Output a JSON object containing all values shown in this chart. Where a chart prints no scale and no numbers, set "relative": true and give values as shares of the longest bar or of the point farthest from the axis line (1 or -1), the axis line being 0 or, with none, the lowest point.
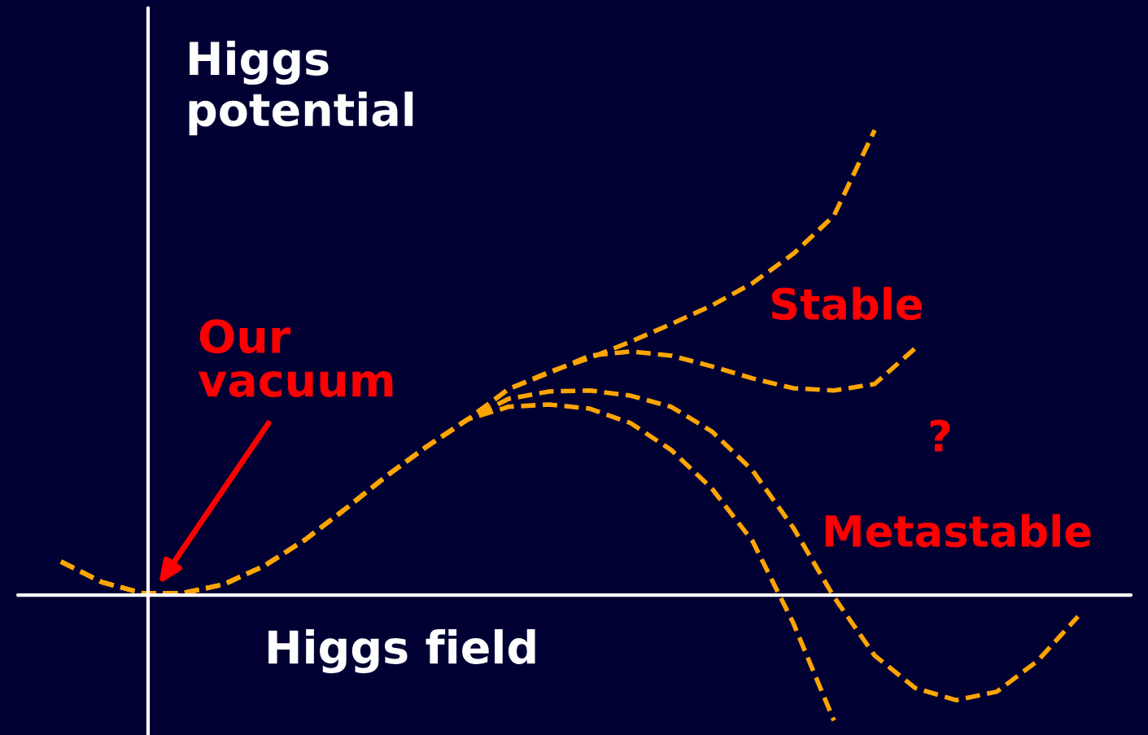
{
  "chart_data": {
    "type": "line",
    "relative": true,
    "xlabel": "Higgs field",
    "ylabel": "Higgs potential",
    "line_style": "dashed",
    "marker": "none",
    "legend": false,
    "categories": [
      null,
      null,
      null,
      null,
      null,
      null,
      null,
      null,
      null,
      null,
      null,
      null,
      null,
      null,
      null,
      null,
      null,
      null,
      null,
      null,
      null,
      null,
      null,
      null,
      null,
      null
    ],
    "series": [
      {
        "color": "#ffa500",
        "values": [
          0.072,
          0.028,
          0.004,
          0.004,
          0.023,
          0.063,
          0.119,
          0.186,
          0.256,
          0.32,
          0.378,
          0.443,
          0.48,
          0.51,
          0.545,
          0.583,
          0.623,
          0.671,
          0.734,
          0.816,
          1.0,
          null,
          null,
          null,
          null,
          null
        ]
      },
      {
        "color": "#ffa500",
        "values": [
          0.072,
          0.028,
          0.004,
          0.004,
          0.023,
          0.063,
          0.119,
          0.186,
          0.256,
          0.32,
          0.378,
          0.443,
          0.478,
          0.515,
          0.524,
          0.515,
          0.492,
          0.466,
          0.445,
          0.44,
          0.454,
          0.531,
          null,
          null,
          null,
          null
        ]
      },
      {
        "color": "#ffa500",
        "values": [
          0.072,
          0.028,
          0.004,
          0.004,
          0.023,
          0.063,
          0.119,
          0.186,
          0.256,
          0.32,
          0.378,
          0.422,
          0.438,
          0.44,
          0.429,
          0.405,
          0.352,
          0.268,
          0.145,
          -0.004,
          -0.13,
          -0.2,
          -0.226,
          -0.208,
          -0.142,
          -0.046
        ]
      },
      {
        "color": "#ffa500",
        "values": [
          0.072,
          0.028,
          0.004,
          0.004,
          0.023,
          0.063,
          0.119,
          0.186,
          0.256,
          0.32,
          0.378,
          0.405,
          0.41,
          0.401,
          0.37,
          0.312,
          0.229,
          0.116,
          -0.06,
          -0.27,
          null,
          null,
          null,
          null,
          null,
          null
        ]
      }
    ],
    "annotations": [
      "Our vacuum",
      "Stable",
      "?",
      "Metastable"
    ]
  }
}
